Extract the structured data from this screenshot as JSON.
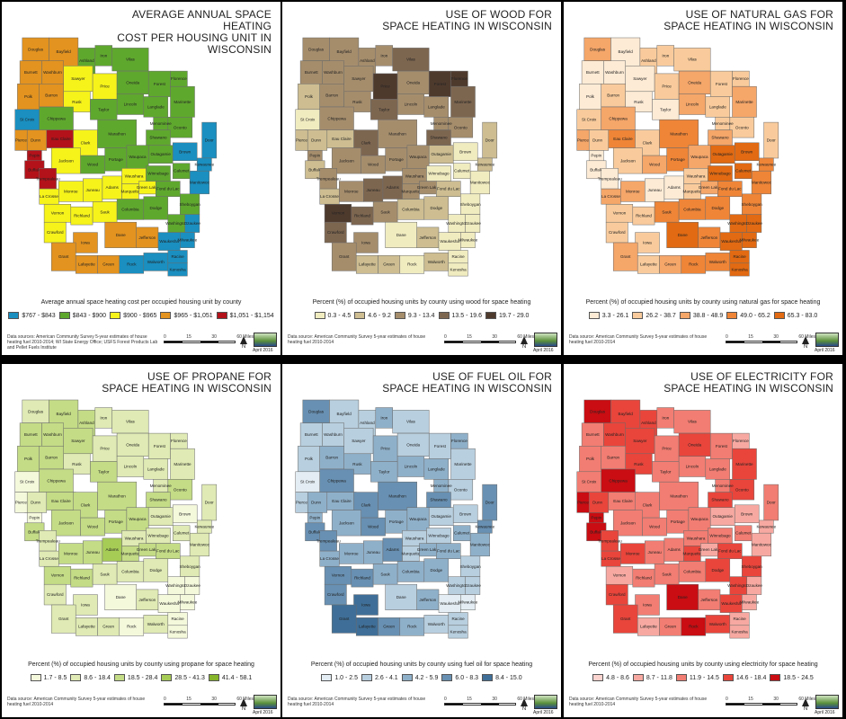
{
  "panels": [
    {
      "title_lines": [
        "AVERAGE ANNUAL SPACE HEATING",
        "COST PER HOUSING UNIT IN WISCONSIN"
      ],
      "legend_title": "Average annual space heating cost per occupied housing unit by county",
      "legend": [
        {
          "label": "$767 - $843",
          "color": "#1a8fc0"
        },
        {
          "label": "$843 - $900",
          "color": "#5fa82e"
        },
        {
          "label": "$900 - $965",
          "color": "#f6f31a"
        },
        {
          "label": "$965 - $1,051",
          "color": "#e3931f"
        },
        {
          "label": "$1,051 - $1,154",
          "color": "#b3121a"
        }
      ],
      "source": "Data sources: American Community Survey 5-year estimates of house heating fuel 2010-2014; WI State Energy Office; USFS Forest Products Lab and Pellet Fuels Institute",
      "date": "April 2016"
    },
    {
      "title_lines": [
        "USE OF WOOD FOR",
        "SPACE HEATING IN WISCONSIN"
      ],
      "legend_title": "Percent (%) of occupied housing units by county using wood for space heating",
      "legend": [
        {
          "label": "0.3 - 4.5",
          "color": "#f1ecc0"
        },
        {
          "label": "4.6 - 9.2",
          "color": "#cdbd91"
        },
        {
          "label": "9.3 - 13.4",
          "color": "#a58d6c"
        },
        {
          "label": "13.5 - 19.6",
          "color": "#7d6650"
        },
        {
          "label": "19.7 - 29.0",
          "color": "#4e3a2d"
        }
      ],
      "source": "Data source: American Community Survey 5-year estimates of house heating fuel 2010-2014",
      "date": "April 2016"
    },
    {
      "title_lines": [
        "USE OF NATURAL GAS FOR",
        "SPACE HEATING IN WISCONSIN"
      ],
      "legend_title": "Percent (%) of occupied housing units by county using natural gas for space heating",
      "legend": [
        {
          "label": "3.3 - 26.1",
          "color": "#fdebd5"
        },
        {
          "label": "26.2 - 38.7",
          "color": "#f9cb9c"
        },
        {
          "label": "38.8 - 48.9",
          "color": "#f5a669"
        },
        {
          "label": "49.0 - 65.2",
          "color": "#ef8537"
        },
        {
          "label": "65.3 - 83.0",
          "color": "#e26a12"
        }
      ],
      "source": "Data source: American Community Survey 5-year estimates of house heating fuel 2010-2014",
      "date": "April 2016"
    },
    {
      "title_lines": [
        "USE OF PROPANE FOR",
        "SPACE HEATING IN WISCONSIN"
      ],
      "legend_title": "Percent (%) of occupied housing units by county using propane for space heating",
      "legend": [
        {
          "label": "1.7 - 8.5",
          "color": "#f5f9dc"
        },
        {
          "label": "8.6 - 18.4",
          "color": "#dfeab4"
        },
        {
          "label": "18.5 - 28.4",
          "color": "#c4dc86"
        },
        {
          "label": "28.5 - 41.3",
          "color": "#a7cc56"
        },
        {
          "label": "41.4 - 58.1",
          "color": "#86b42a"
        }
      ],
      "source": "Data source: American Community Survey 5-year estimates of house heating fuel 2010-2014",
      "date": "April 2016"
    },
    {
      "title_lines": [
        "USE OF FUEL OIL FOR",
        "SPACE HEATING IN WISCONSIN"
      ],
      "legend_title": "Percent (%) of occupied housing units by county using fuel oil for space heating",
      "legend": [
        {
          "label": "1.0 - 2.5",
          "color": "#e3edf3"
        },
        {
          "label": "2.6 - 4.1",
          "color": "#b8cfdf"
        },
        {
          "label": "4.2 - 5.9",
          "color": "#8fb0c9"
        },
        {
          "label": "6.0 - 8.3",
          "color": "#6890b2"
        },
        {
          "label": "8.4 - 15.0",
          "color": "#3f6f98"
        }
      ],
      "source": "Data source: American Community Survey 5-year estimates of house heating fuel 2010-2014",
      "date": "April 2016"
    },
    {
      "title_lines": [
        "USE OF ELECTRICITY FOR",
        "SPACE HEATING IN WISCONSIN"
      ],
      "legend_title": "Percent (%) of occupied housing units by county using electricity for space heating",
      "legend": [
        {
          "label": "4.8 - 8.6",
          "color": "#fbd4d0"
        },
        {
          "label": "8.7 - 11.8",
          "color": "#f7a9a1"
        },
        {
          "label": "11.9 - 14.5",
          "color": "#f27d72"
        },
        {
          "label": "14.6 - 18.4",
          "color": "#e9453b"
        },
        {
          "label": "18.5 - 24.5",
          "color": "#c90d12"
        }
      ],
      "source": "Data source: American Community Survey 5-year estimates of house heating fuel 2010-2014",
      "date": "April 2016"
    }
  ],
  "scale": {
    "ticks": [
      "0",
      "15",
      "30",
      "60 Miles"
    ]
  },
  "north_label": "N",
  "counties": [
    "Douglas",
    "Bayfield",
    "Ashland",
    "Iron",
    "Vilas",
    "Burnett",
    "Washburn",
    "Sawyer",
    "Price",
    "Oneida",
    "Forest",
    "Florence",
    "Marinette",
    "Polk",
    "Barron",
    "Rusk",
    "Lincoln",
    "Langlade",
    "Oconto",
    "Taylor",
    "St Croix",
    "Chippewa",
    "Dunn",
    "Menominee",
    "Shawano",
    "Door",
    "Pierce",
    "Pepin",
    "Eau Claire",
    "Clark",
    "Marathon",
    "Kewaunee",
    "Buffalo",
    "Portage",
    "Waupaca",
    "Outagamie",
    "Brown",
    "Jackson",
    "Wood",
    "Trempealeau",
    "Manitowoc",
    "Calumet",
    "Waushara",
    "Winnebago",
    "La Crosse",
    "Monroe",
    "Juneau",
    "Adams",
    "Marquette",
    "Green Lake",
    "Fond du Lac",
    "Sheboygan",
    "Vernon",
    "Richland",
    "Sauk",
    "Columbia",
    "Dodge",
    "Washington",
    "Ozaukee",
    "Crawford",
    "Iowa",
    "Dane",
    "Jefferson",
    "Waukesha",
    "Milwaukee",
    "Grant",
    "Lafayette",
    "Green",
    "Rock",
    "Walworth",
    "Racine",
    "Kenosha"
  ],
  "class_assignments": [
    [
      3,
      3,
      1,
      1,
      1,
      3,
      3,
      2,
      2,
      1,
      1,
      1,
      1,
      3,
      3,
      2,
      1,
      1,
      1,
      1,
      0,
      1,
      3,
      1,
      1,
      0,
      3,
      4,
      4,
      2,
      1,
      0,
      4,
      1,
      1,
      1,
      0,
      2,
      1,
      4,
      0,
      1,
      2,
      1,
      2,
      2,
      2,
      2,
      2,
      2,
      1,
      1,
      2,
      2,
      2,
      1,
      1,
      1,
      0,
      2,
      3,
      3,
      3,
      0,
      0,
      3,
      3,
      3,
      0,
      0,
      0,
      0
    ],
    [
      2,
      2,
      2,
      2,
      3,
      2,
      2,
      2,
      4,
      2,
      4,
      4,
      3,
      1,
      2,
      2,
      2,
      2,
      2,
      3,
      0,
      2,
      1,
      2,
      3,
      1,
      1,
      2,
      1,
      3,
      2,
      1,
      1,
      2,
      2,
      1,
      0,
      2,
      2,
      2,
      0,
      0,
      2,
      0,
      1,
      2,
      3,
      3,
      2,
      2,
      1,
      0,
      4,
      3,
      2,
      1,
      1,
      0,
      0,
      3,
      2,
      0,
      1,
      0,
      0,
      2,
      1,
      1,
      0,
      1,
      0,
      0
    ],
    [
      2,
      0,
      1,
      1,
      1,
      0,
      0,
      0,
      1,
      2,
      1,
      1,
      2,
      0,
      1,
      0,
      2,
      1,
      1,
      0,
      1,
      2,
      1,
      1,
      2,
      1,
      2,
      0,
      3,
      1,
      3,
      3,
      0,
      3,
      2,
      4,
      4,
      1,
      2,
      0,
      3,
      4,
      1,
      4,
      2,
      2,
      0,
      0,
      1,
      2,
      3,
      3,
      1,
      1,
      3,
      3,
      3,
      4,
      4,
      1,
      1,
      4,
      3,
      4,
      4,
      2,
      1,
      2,
      3,
      3,
      4,
      4
    ],
    [
      1,
      2,
      2,
      1,
      1,
      2,
      2,
      2,
      1,
      1,
      1,
      1,
      1,
      2,
      2,
      1,
      1,
      1,
      2,
      2,
      0,
      2,
      1,
      1,
      2,
      1,
      0,
      0,
      2,
      2,
      2,
      1,
      2,
      2,
      2,
      1,
      0,
      2,
      2,
      1,
      1,
      1,
      1,
      1,
      1,
      2,
      2,
      3,
      2,
      2,
      2,
      1,
      2,
      2,
      1,
      1,
      1,
      0,
      0,
      1,
      1,
      0,
      1,
      0,
      0,
      1,
      1,
      1,
      0,
      1,
      0,
      0
    ],
    [
      3,
      1,
      1,
      2,
      1,
      1,
      1,
      1,
      2,
      1,
      1,
      2,
      1,
      1,
      2,
      2,
      2,
      2,
      1,
      2,
      0,
      3,
      2,
      2,
      3,
      3,
      1,
      2,
      2,
      3,
      3,
      3,
      3,
      2,
      2,
      1,
      1,
      2,
      3,
      3,
      2,
      2,
      1,
      1,
      2,
      2,
      2,
      3,
      1,
      2,
      2,
      1,
      3,
      3,
      2,
      2,
      2,
      1,
      1,
      3,
      4,
      1,
      2,
      0,
      0,
      4,
      4,
      3,
      2,
      1,
      1,
      1
    ],
    [
      4,
      3,
      3,
      2,
      2,
      2,
      3,
      3,
      2,
      3,
      2,
      1,
      3,
      2,
      2,
      3,
      2,
      2,
      3,
      2,
      2,
      4,
      3,
      2,
      3,
      2,
      4,
      4,
      2,
      2,
      2,
      1,
      4,
      2,
      2,
      1,
      1,
      2,
      2,
      3,
      1,
      2,
      2,
      2,
      3,
      3,
      2,
      2,
      3,
      1,
      3,
      3,
      1,
      2,
      2,
      2,
      3,
      3,
      1,
      3,
      2,
      4,
      2,
      3,
      1,
      3,
      1,
      2,
      4,
      3,
      1,
      1
    ]
  ]
}
